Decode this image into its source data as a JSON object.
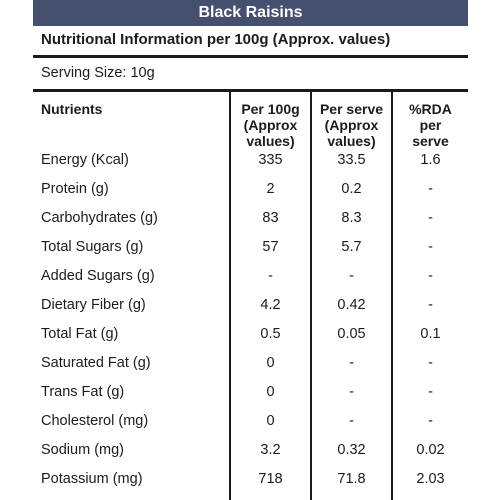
{
  "title": "Black Raisins",
  "subtitle": "Nutritional Information per 100g (Approx. values)",
  "serving_size": "Serving Size:  10g",
  "headers": {
    "nutrients": "Nutrients",
    "per100_line1": "Per 100g",
    "per100_line2": "(Approx",
    "per100_line3": "values)",
    "serve_line1": "Per serve",
    "serve_line2": "(Approx",
    "serve_line3": "values)",
    "rda_line1": "%RDA",
    "rda_line2": "per",
    "rda_line3": "serve"
  },
  "rows": [
    {
      "nutrient": "Energy (Kcal)",
      "per100": "335",
      "per_serve": "33.5",
      "rda": "1.6"
    },
    {
      "nutrient": "Protein (g)",
      "per100": "2",
      "per_serve": "0.2",
      "rda": "-"
    },
    {
      "nutrient": "Carbohydrates (g)",
      "per100": "83",
      "per_serve": "8.3",
      "rda": "-"
    },
    {
      "nutrient": "Total Sugars (g)",
      "per100": "57",
      "per_serve": "5.7",
      "rda": "-"
    },
    {
      "nutrient": "Added Sugars (g)",
      "per100": "-",
      "per_serve": "-",
      "rda": "-"
    },
    {
      "nutrient": "Dietary Fiber (g)",
      "per100": "4.2",
      "per_serve": "0.42",
      "rda": "-"
    },
    {
      "nutrient": "Total Fat (g)",
      "per100": "0.5",
      "per_serve": "0.05",
      "rda": "0.1"
    },
    {
      "nutrient": "Saturated Fat (g)",
      "per100": "0",
      "per_serve": "-",
      "rda": "-"
    },
    {
      "nutrient": "Trans Fat (g)",
      "per100": "0",
      "per_serve": "-",
      "rda": "-"
    },
    {
      "nutrient": "Cholesterol (mg)",
      "per100": "0",
      "per_serve": "-",
      "rda": "-"
    },
    {
      "nutrient": "Sodium (mg)",
      "per100": "3.2",
      "per_serve": "0.32",
      "rda": "0.02"
    },
    {
      "nutrient": "Potassium (mg)",
      "per100": "718",
      "per_serve": "71.8",
      "rda": "2.03"
    }
  ],
  "colors": {
    "title_bar": "#45506f",
    "title_text": "#ffffff",
    "rule": "#1a1a1a"
  }
}
